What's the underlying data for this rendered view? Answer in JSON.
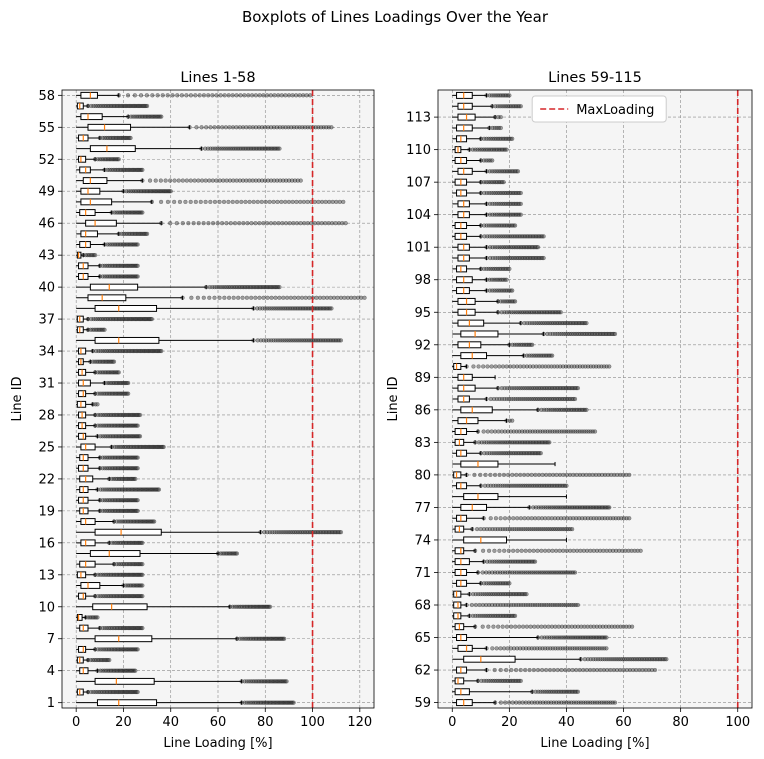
{
  "figure": {
    "suptitle": "Boxplots of Lines Loadings Over the Year"
  },
  "chart_data": [
    {
      "type": "boxplot",
      "orientation": "horizontal",
      "title": "Lines 1-58",
      "xlabel": "Line Loading [%]",
      "ylabel": "Line ID",
      "xlim": [
        -6,
        126
      ],
      "xticks": [
        0,
        20,
        40,
        60,
        80,
        100,
        120
      ],
      "ylim": [
        0.5,
        58.5
      ],
      "yticks": [
        1,
        4,
        7,
        10,
        13,
        16,
        19,
        22,
        25,
        28,
        31,
        34,
        37,
        40,
        43,
        46,
        49,
        52,
        55,
        58
      ],
      "grid": true,
      "reference_line": {
        "x": 100,
        "color": "#d62728",
        "style": "dashed"
      },
      "colors": {
        "box_edge": "#000000",
        "median": "#ff7f0e",
        "flier": "#333333",
        "panel_bg": "#f5f5f5"
      },
      "first_id": 1,
      "boxes": [
        [
          0,
          9,
          18,
          34,
          70
        ],
        [
          0,
          0.5,
          1.5,
          3,
          5
        ],
        [
          0,
          8,
          17,
          33,
          70
        ],
        [
          0,
          1.5,
          3,
          5,
          9
        ],
        [
          0,
          0.5,
          1.5,
          3,
          5
        ],
        [
          0,
          1,
          3,
          4,
          8
        ],
        [
          0,
          8,
          18,
          32,
          68
        ],
        [
          0,
          1.5,
          3,
          5,
          10
        ],
        [
          0,
          0.5,
          1,
          2.5,
          4
        ],
        [
          0,
          7,
          15,
          30,
          65
        ],
        [
          0,
          1,
          3,
          4,
          8
        ],
        [
          0,
          2,
          5,
          10,
          20
        ],
        [
          0,
          0.5,
          2,
          4,
          8
        ],
        [
          0,
          1.5,
          4,
          8,
          16
        ],
        [
          0,
          6,
          14,
          27,
          60
        ],
        [
          0,
          2,
          4,
          8,
          14
        ],
        [
          0,
          8,
          19,
          36,
          78
        ],
        [
          0,
          2,
          4,
          8,
          16
        ],
        [
          0,
          1.5,
          3,
          5,
          10
        ],
        [
          0,
          1,
          3,
          5,
          10
        ],
        [
          0,
          1.5,
          3,
          5,
          9
        ],
        [
          0,
          1.5,
          4,
          7,
          14
        ],
        [
          0,
          1,
          3,
          5,
          10
        ],
        [
          0,
          1.5,
          3,
          5,
          10
        ],
        [
          0,
          2,
          4,
          8,
          15
        ],
        [
          0,
          1,
          3,
          4,
          9
        ],
        [
          0,
          1,
          2.5,
          4,
          8
        ],
        [
          0,
          1,
          2.5,
          4,
          8
        ],
        [
          0,
          0.5,
          2,
          4,
          7
        ],
        [
          0,
          1,
          3,
          4,
          8
        ],
        [
          0,
          1,
          3,
          6,
          12
        ],
        [
          0,
          1,
          2.5,
          4,
          8
        ],
        [
          0,
          1,
          2,
          3,
          6
        ],
        [
          0,
          1,
          2,
          4,
          7
        ],
        [
          0,
          8,
          18,
          35,
          75
        ],
        [
          0,
          0.5,
          1.5,
          3,
          5
        ],
        [
          0,
          0.5,
          1.5,
          3,
          5
        ],
        [
          0,
          8,
          18,
          34,
          75
        ],
        [
          0,
          5,
          11,
          21,
          45
        ],
        [
          0,
          6,
          14,
          26,
          55
        ],
        [
          0,
          1,
          3,
          5,
          10
        ],
        [
          0,
          1,
          3,
          5,
          10
        ],
        [
          0,
          0.5,
          1,
          2,
          3
        ],
        [
          0,
          1.5,
          4,
          6,
          12
        ],
        [
          0,
          2,
          4,
          9,
          18
        ],
        [
          0,
          4,
          8,
          17,
          36
        ],
        [
          0,
          1.5,
          4,
          8,
          15
        ],
        [
          0,
          2,
          6,
          15,
          32
        ],
        [
          0,
          2,
          5,
          10,
          20
        ],
        [
          0,
          3,
          6,
          13,
          28
        ],
        [
          0,
          1.5,
          4,
          6,
          12
        ],
        [
          0,
          1,
          2,
          4,
          8
        ],
        [
          0,
          6,
          13,
          25,
          53
        ],
        [
          0,
          1,
          3,
          5,
          10
        ],
        [
          0,
          5,
          12,
          23,
          48
        ],
        [
          0,
          2,
          5,
          11,
          22
        ],
        [
          0,
          0.5,
          1.5,
          3,
          5
        ],
        [
          0,
          2,
          6,
          9,
          18
        ]
      ],
      "flier_max": [
        92,
        26,
        89,
        25,
        14,
        26,
        88,
        28,
        9,
        82,
        28,
        28,
        28,
        28,
        68,
        28,
        112,
        33,
        26,
        26,
        35,
        25,
        26,
        26,
        37,
        27,
        26,
        27,
        9,
        22,
        22,
        18,
        16,
        36,
        112,
        12,
        32,
        108,
        122,
        86,
        26,
        26,
        8,
        26,
        30,
        114,
        28,
        113,
        40,
        95,
        28,
        18,
        86,
        23,
        108,
        36,
        30,
        99
      ]
    },
    {
      "type": "boxplot",
      "orientation": "horizontal",
      "title": "Lines 59-115",
      "xlabel": "Line Loading [%]",
      "ylabel": "Line ID",
      "xlim": [
        -5,
        105
      ],
      "xticks": [
        0,
        20,
        40,
        60,
        80,
        100
      ],
      "ylim": [
        58.5,
        115.5
      ],
      "yticks": [
        59,
        62,
        65,
        68,
        71,
        74,
        77,
        80,
        83,
        86,
        89,
        92,
        95,
        98,
        101,
        104,
        107,
        110,
        113
      ],
      "grid": true,
      "legend": {
        "label": "MaxLoading",
        "position": "top-right"
      },
      "reference_line": {
        "x": 100,
        "color": "#d62728",
        "style": "dashed"
      },
      "colors": {
        "box_edge": "#000000",
        "median": "#ff7f0e",
        "flier": "#333333",
        "panel_bg": "#f5f5f5"
      },
      "first_id": 59,
      "boxes": [
        [
          0,
          1.5,
          4,
          7,
          15
        ],
        [
          0,
          1,
          3,
          6,
          28
        ],
        [
          0,
          1,
          2,
          4,
          9
        ],
        [
          0,
          1.5,
          3,
          5,
          12
        ],
        [
          0,
          4,
          10,
          22,
          45
        ],
        [
          0,
          2,
          5,
          7,
          12
        ],
        [
          0,
          1.5,
          3,
          5,
          30
        ],
        [
          0,
          1,
          2.5,
          4,
          8
        ],
        [
          0,
          0.5,
          2,
          3,
          6
        ],
        [
          0,
          0.5,
          2,
          3,
          5
        ],
        [
          0,
          0.5,
          1.5,
          3,
          6
        ],
        [
          0,
          1.5,
          3,
          5,
          10
        ],
        [
          0,
          1,
          3,
          5,
          9
        ],
        [
          0,
          1,
          3,
          6,
          11
        ],
        [
          0,
          1,
          3,
          4,
          8
        ],
        [
          0,
          4,
          10,
          19,
          40
        ],
        [
          0,
          1,
          2.5,
          4,
          7
        ],
        [
          0,
          1.5,
          3,
          5,
          11
        ],
        [
          0,
          3,
          7,
          12,
          27
        ],
        [
          0,
          4,
          9,
          16,
          40
        ],
        [
          0,
          1.5,
          3,
          5,
          10
        ],
        [
          0,
          0.5,
          1.5,
          3,
          5
        ],
        [
          0,
          3,
          9,
          16,
          36
        ],
        [
          0,
          1.5,
          3,
          5,
          10
        ],
        [
          0,
          1,
          2.5,
          4,
          8
        ],
        [
          0,
          1,
          3,
          5,
          9
        ],
        [
          0,
          2,
          5,
          9,
          19
        ],
        [
          0,
          3,
          7,
          14,
          30
        ],
        [
          0,
          2,
          4,
          6,
          12
        ],
        [
          0,
          2,
          4,
          8,
          16
        ],
        [
          0,
          2,
          4,
          7,
          15
        ],
        [
          0,
          0.5,
          1.5,
          3,
          5
        ],
        [
          0,
          3,
          7,
          12,
          25
        ],
        [
          0,
          2,
          6,
          10,
          20
        ],
        [
          0,
          3,
          8,
          16,
          32
        ],
        [
          0,
          2,
          6,
          11,
          24
        ],
        [
          0,
          2,
          5,
          8,
          16
        ],
        [
          0,
          2,
          5,
          8,
          16
        ],
        [
          0,
          1.5,
          4,
          6,
          12
        ],
        [
          0,
          1.5,
          4,
          7,
          12
        ],
        [
          0,
          1.5,
          3,
          5,
          10
        ],
        [
          0,
          2,
          4,
          6,
          12
        ],
        [
          0,
          2,
          4,
          6,
          12
        ],
        [
          0,
          1,
          3,
          5,
          10
        ],
        [
          0,
          1,
          3,
          5,
          10
        ],
        [
          0,
          2,
          4,
          6,
          12
        ],
        [
          0,
          2,
          4,
          6,
          12
        ],
        [
          0,
          1.5,
          3,
          5,
          10
        ],
        [
          0,
          1,
          3,
          5,
          10
        ],
        [
          0,
          2,
          4,
          7,
          12
        ],
        [
          0,
          1,
          3,
          5,
          10
        ],
        [
          0,
          1,
          2,
          3,
          6
        ],
        [
          0,
          1.5,
          3,
          5,
          10
        ],
        [
          0,
          1.5,
          4,
          7,
          13
        ],
        [
          0,
          2,
          5,
          8,
          15
        ],
        [
          0,
          2,
          4,
          7,
          14
        ],
        [
          0,
          1.5,
          4,
          7,
          12
        ]
      ],
      "flier_max": [
        57,
        44,
        24,
        71,
        75,
        54,
        54,
        63,
        22,
        44,
        26,
        20,
        43,
        29,
        66,
        25,
        42,
        62,
        55,
        14,
        40,
        62,
        22,
        31,
        34,
        50,
        21,
        47,
        43,
        44,
        13,
        55,
        35,
        28,
        57,
        47,
        38,
        22,
        21,
        19,
        20,
        32,
        30,
        32,
        22,
        24,
        24,
        24,
        18,
        23,
        14,
        19,
        21,
        17,
        17,
        24,
        20
      ]
    }
  ]
}
